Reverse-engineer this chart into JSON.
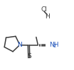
{
  "bg_color": "#ffffff",
  "line_color": "#3a3a3a",
  "N_color": "#2255bb",
  "S_color": "#3a3a3a",
  "Cl_color": "#3a3a3a",
  "H_color": "#3a3a3a",
  "font_size": 6.5,
  "lw": 1.1,
  "xlim": [
    0,
    10.4
  ],
  "ylim": [
    0,
    9.9
  ]
}
